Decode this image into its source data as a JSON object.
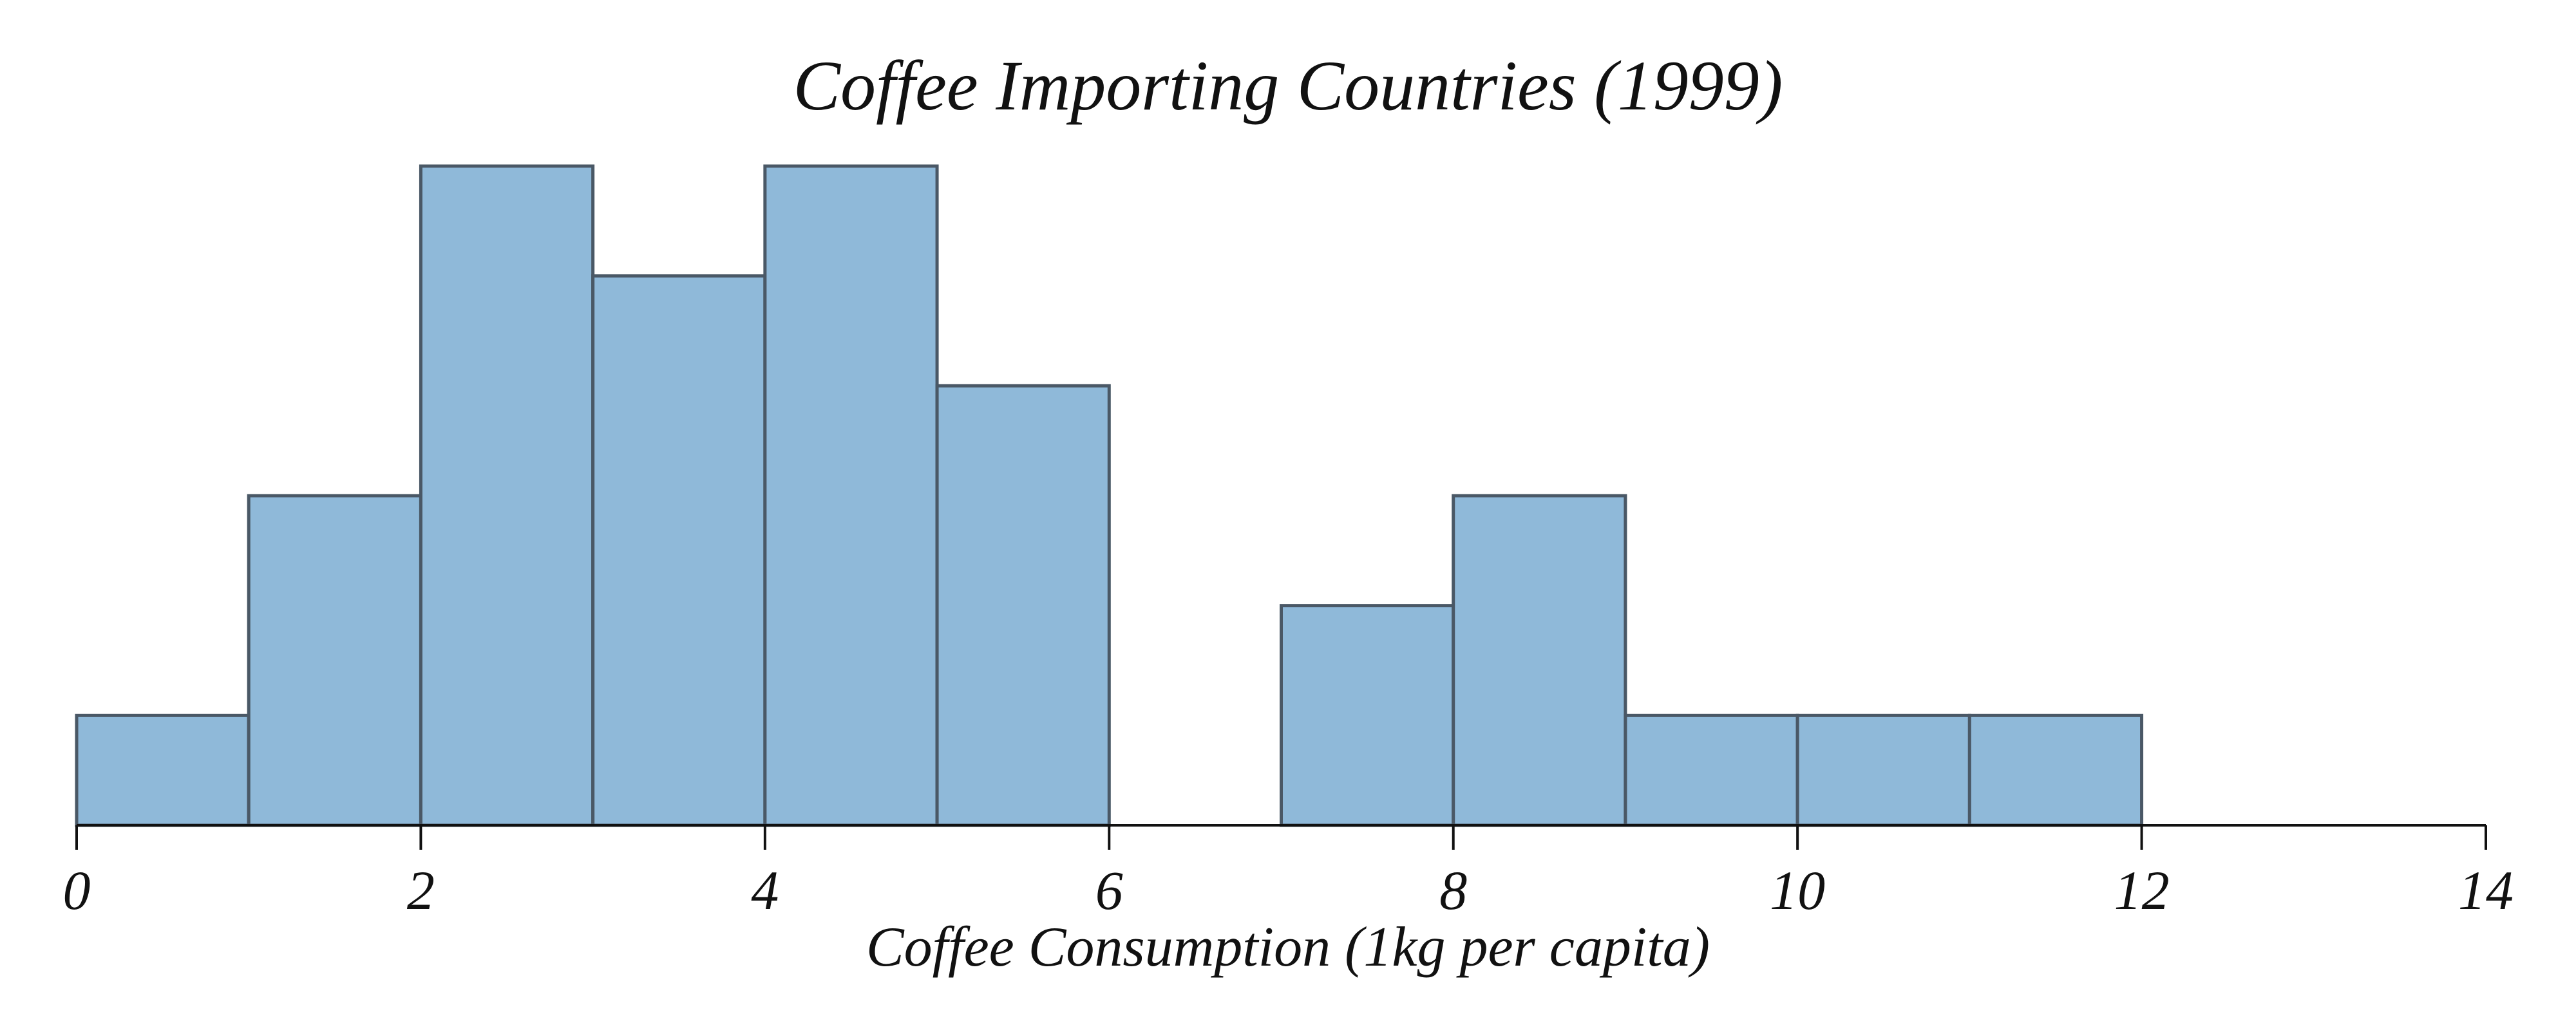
{
  "chart_data": {
    "type": "bar",
    "title": "Coffee Importing Countries (1999)",
    "xlabel": "Coffee Consumption (1kg per capita)",
    "ylabel": "",
    "bin_edges": [
      0,
      1,
      2,
      3,
      4,
      5,
      6,
      7,
      8,
      9,
      10,
      11,
      12,
      13
    ],
    "values": [
      1,
      3,
      6,
      5,
      6,
      4,
      0,
      2,
      3,
      1,
      1,
      1,
      0
    ],
    "xlim": [
      0,
      14
    ],
    "ylim": [
      0,
      6
    ],
    "x_ticks": [
      "0",
      "2",
      "4",
      "6",
      "8",
      "10",
      "12",
      "14"
    ],
    "y_axis_visible": false,
    "grid": false,
    "legend": "none",
    "colors": {
      "bar_fill": "#8fb9d9",
      "bar_edge": "#4a5866",
      "axis": "#111111"
    }
  }
}
